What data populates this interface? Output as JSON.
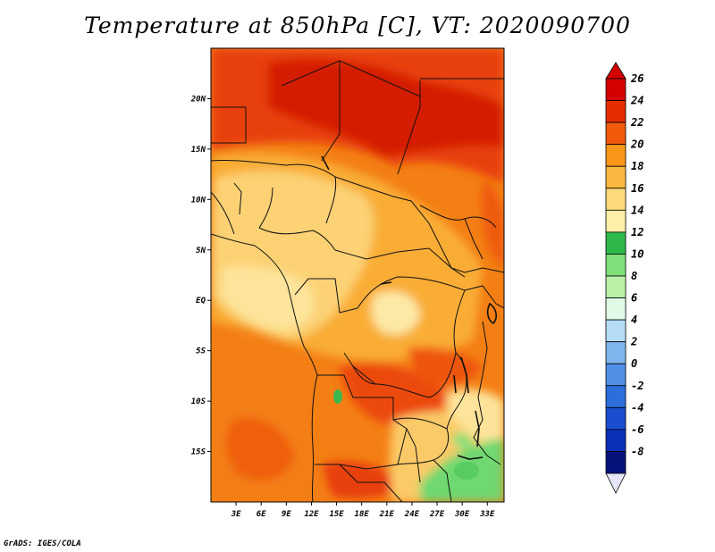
{
  "title": "Temperature at 850hPa [C], VT: 2020090700",
  "credit": "GrADS: IGES/COLA",
  "map": {
    "region": "Central and Southern Africa",
    "lon_range": [
      0,
      35
    ],
    "lat_range": [
      -20,
      25
    ],
    "x_ticks": [
      "3E",
      "6E",
      "9E",
      "12E",
      "15E",
      "18E",
      "21E",
      "24E",
      "27E",
      "30E",
      "33E"
    ],
    "y_ticks": [
      "20N",
      "15N",
      "10N",
      "5N",
      "EQ",
      "5S",
      "10S",
      "15S"
    ]
  },
  "colorbar": {
    "labels": [
      "26",
      "24",
      "22",
      "20",
      "18",
      "16",
      "14",
      "12",
      "10",
      "8",
      "6",
      "4",
      "2",
      "0",
      "-2",
      "-4",
      "-6",
      "-8"
    ],
    "colors": [
      "#d40000",
      "#e62d00",
      "#f05a0a",
      "#f79619",
      "#fbb840",
      "#fcd97a",
      "#fdefa8",
      "#2eb84c",
      "#7fe07a",
      "#b8f0a8",
      "#e0fae6",
      "#b4dcf5",
      "#7fb6ee",
      "#4f90e6",
      "#2c6fdc",
      "#1a4ed0",
      "#0c2fb8",
      "#06127a"
    ],
    "over_color": "#d40000",
    "under_color": "#e6e6fa"
  }
}
